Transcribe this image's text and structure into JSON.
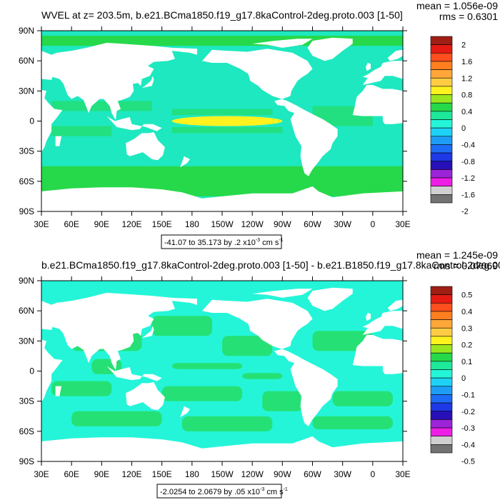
{
  "chart_data": [
    {
      "type": "heatmap",
      "title": "WVEL at z= 203.5m, b.e21.BCma1850.f19_g17.8kaControl-2deg.proto.003 [1-50]",
      "stats": {
        "mean": "mean = 1.056e-09",
        "rms": "rms = 0.6301"
      },
      "range_label": "-41.07 to 35.173 by .2 x10",
      "range_exp": "-3",
      "range_units_a": " cm s",
      "range_units_exp": "-1",
      "x_ticks": [
        "30E",
        "60E",
        "90E",
        "120E",
        "150E",
        "180",
        "150W",
        "120W",
        "90W",
        "60W",
        "30W",
        "0",
        "30E"
      ],
      "y_ticks": [
        "90N",
        "60N",
        "30N",
        "0",
        "30S",
        "60S",
        "90S"
      ],
      "xlim": [
        30,
        390
      ],
      "ylim": [
        -90,
        90
      ],
      "colorbar": {
        "labels": [
          "2",
          "1.6",
          "1.2",
          "0.8",
          "0.4",
          "0",
          "-0.4",
          "-0.8",
          "-1.2",
          "-1.6",
          "-2"
        ],
        "colors": [
          "#a01e14",
          "#e51b14",
          "#ff4f1e",
          "#ff7f20",
          "#ffa638",
          "#ffcc44",
          "#fff21e",
          "#99e61e",
          "#26d94a",
          "#1ee89a",
          "#24f5d9",
          "#1ed2f5",
          "#1e9df5",
          "#1e6cf5",
          "#1e38e6",
          "#2810b8",
          "#9b24d9",
          "#ee1ee6",
          "#d0d0d0",
          "#727272"
        ]
      },
      "background_value_color": "#1ee8c0",
      "features": {
        "equatorial_pacific_band": {
          "lon": [
            160,
            270
          ],
          "lat": [
            -5,
            5
          ],
          "color": "#fff21e"
        },
        "southern_ocean_band": {
          "lat": [
            -75,
            -45
          ],
          "color": "#26d94a"
        },
        "arctic_band": {
          "lat": [
            75,
            85
          ],
          "color": "#26d94a"
        }
      }
    },
    {
      "type": "heatmap",
      "title": "b.e21.BCma1850.f19_g17.8kaControl-2deg.proto.003 [1-50] - b.e21.B1850.f19_g17.8kaControl-2deg.00",
      "stats": {
        "mean": "mean = 1.245e-09",
        "rms": "rms = 0.07069"
      },
      "range_label": "-2.0254 to 2.0679 by .05 x10",
      "range_exp": "-3",
      "range_units_a": " cm s",
      "range_units_exp": "-1",
      "x_ticks": [
        "30E",
        "60E",
        "90E",
        "120E",
        "150E",
        "180",
        "150W",
        "120W",
        "90W",
        "60W",
        "30W",
        "0",
        "30E"
      ],
      "y_ticks": [
        "90N",
        "60N",
        "30N",
        "0",
        "30S",
        "60S",
        "90S"
      ],
      "xlim": [
        30,
        390
      ],
      "ylim": [
        -90,
        90
      ],
      "colorbar": {
        "labels": [
          "0.5",
          "0.4",
          "0.3",
          "0.2",
          "0.1",
          "0",
          "-0.1",
          "-0.2",
          "-0.3",
          "-0.4",
          "-0.5"
        ],
        "colors": [
          "#a01e14",
          "#e51b14",
          "#ff4f1e",
          "#ff7f20",
          "#ffa638",
          "#ffcc44",
          "#fff21e",
          "#99e61e",
          "#26d94a",
          "#1ee89a",
          "#24f5d9",
          "#1ed2f5",
          "#1e9df5",
          "#1e6cf5",
          "#1e38e6",
          "#2810b8",
          "#9b24d9",
          "#ee1ee6",
          "#d0d0d0",
          "#727272"
        ]
      },
      "background_value_color": "#24f5d9",
      "features": {
        "green_patches_color": "#26d94a"
      }
    }
  ]
}
